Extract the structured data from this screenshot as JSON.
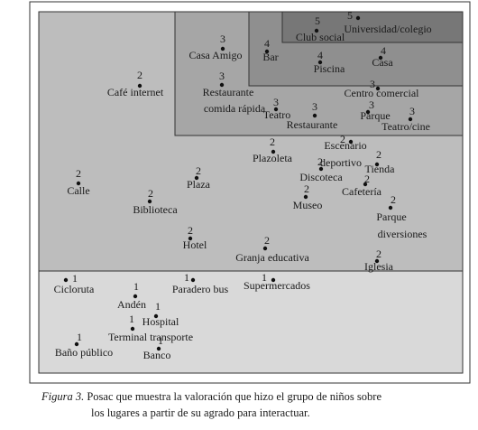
{
  "figure": {
    "nodes": [
      {
        "label": [
          "Universidad/colegio"
        ],
        "rating": 5
      },
      {
        "label": [
          "Club social"
        ],
        "rating": 5
      },
      {
        "label": [
          "Casa Amigo"
        ],
        "rating": 3
      },
      {
        "label": [
          "Bar"
        ],
        "rating": 4
      },
      {
        "label": [
          "Piscina"
        ],
        "rating": 4
      },
      {
        "label": [
          "Casa"
        ],
        "rating": 4
      },
      {
        "label": [
          "Café internet"
        ],
        "rating": 2
      },
      {
        "label": [
          "Restaurante",
          "comida rápida"
        ],
        "rating": 3
      },
      {
        "label": [
          "Centro comercial"
        ],
        "rating": 3
      },
      {
        "label": [
          "Teatro"
        ],
        "rating": 3
      },
      {
        "label": [
          "Restaurante"
        ],
        "rating": 3
      },
      {
        "label": [
          "Parque"
        ],
        "rating": 3
      },
      {
        "label": [
          "Teatro/cine"
        ],
        "rating": 3
      },
      {
        "label": [
          "Escenario",
          "deportivo"
        ],
        "rating": 2
      },
      {
        "label": [
          "Plazoleta"
        ],
        "rating": 2
      },
      {
        "label": [
          "Discoteca"
        ],
        "rating": 2
      },
      {
        "label": [
          "Tienda"
        ],
        "rating": 2
      },
      {
        "label": [
          "Calle"
        ],
        "rating": 2
      },
      {
        "label": [
          "Plaza"
        ],
        "rating": 2
      },
      {
        "label": [
          "Cafetería"
        ],
        "rating": 2
      },
      {
        "label": [
          "Biblioteca"
        ],
        "rating": 2
      },
      {
        "label": [
          "Museo"
        ],
        "rating": 2
      },
      {
        "label": [
          "Parque",
          "diversiones"
        ],
        "rating": 2
      },
      {
        "label": [
          "Hotel"
        ],
        "rating": 2
      },
      {
        "label": [
          "Granja educativa"
        ],
        "rating": 2
      },
      {
        "label": [
          "Iglesia"
        ],
        "rating": 2
      },
      {
        "label": [
          "Cicloruta"
        ],
        "rating": 1
      },
      {
        "label": [
          "Paradero bus"
        ],
        "rating": 1
      },
      {
        "label": [
          "Supermercados"
        ],
        "rating": 1
      },
      {
        "label": [
          "Andén"
        ],
        "rating": 1
      },
      {
        "label": [
          "Hospital"
        ],
        "rating": 1
      },
      {
        "label": [
          "Terminal transporte"
        ],
        "rating": 1
      },
      {
        "label": [
          "Baño público"
        ],
        "rating": 1
      },
      {
        "label": [
          "Banco"
        ],
        "rating": 1
      }
    ]
  },
  "caption": {
    "figure": "Figura 3.",
    "lines": [
      "Posac que muestra la valoración que hizo el grupo de niños sobre",
      "los lugares a partir de su agrado para  interactuar."
    ]
  }
}
